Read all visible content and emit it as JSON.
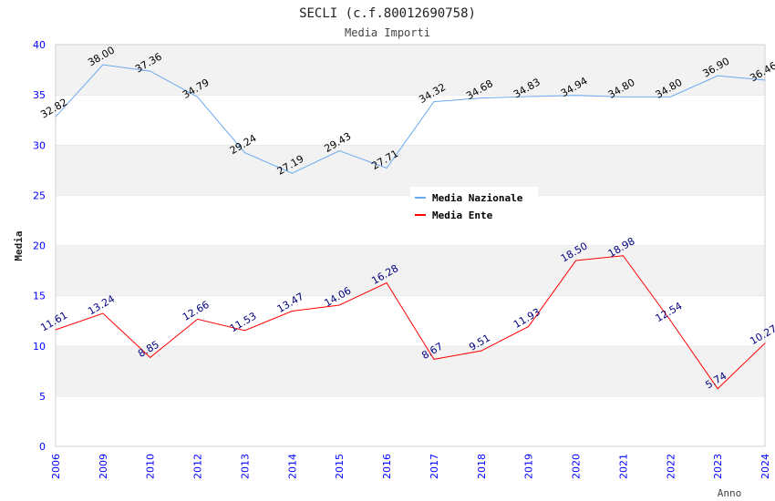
{
  "chart_data": {
    "type": "line",
    "title": "SECLI (c.f.80012690758)",
    "subtitle": "Media Importi",
    "xlabel": "Anno",
    "ylabel": "Media",
    "ylim": [
      0,
      40
    ],
    "yticks": [
      0,
      5,
      10,
      15,
      20,
      25,
      30,
      35,
      40
    ],
    "categories": [
      "2006",
      "2009",
      "2010",
      "2012",
      "2013",
      "2014",
      "2015",
      "2016",
      "2017",
      "2018",
      "2019",
      "2020",
      "2021",
      "2022",
      "2023",
      "2024"
    ],
    "legend_position": "top-right",
    "series": [
      {
        "name": "Media Nazionale",
        "color": "#6aaaf0",
        "label_color": "#000000",
        "values": [
          32.82,
          38.0,
          37.36,
          34.79,
          29.24,
          27.19,
          29.43,
          27.71,
          34.32,
          34.68,
          34.83,
          34.94,
          34.8,
          34.8,
          36.9,
          36.46
        ],
        "labels": [
          "32.82",
          "38.00",
          "37.36",
          "34.79",
          "29.24",
          "27.19",
          "29.43",
          "27.71",
          "34.32",
          "34.68",
          "34.83",
          "34.94",
          "34.80",
          "34.80",
          "36.90",
          "36.46"
        ]
      },
      {
        "name": "Media Ente",
        "color": "#ff0000",
        "label_color": "#000080",
        "values": [
          11.61,
          13.24,
          8.85,
          12.66,
          11.53,
          13.47,
          14.06,
          16.28,
          8.67,
          9.51,
          11.93,
          18.5,
          18.98,
          12.54,
          5.74,
          10.27
        ],
        "labels": [
          "11.61",
          "13.24",
          "8.85",
          "12.66",
          "11.53",
          "13.47",
          "14.06",
          "16.28",
          "8.67",
          "9.51",
          "11.93",
          "18.50",
          "18.98",
          "12.54",
          "5.74",
          "10.27"
        ]
      }
    ]
  }
}
